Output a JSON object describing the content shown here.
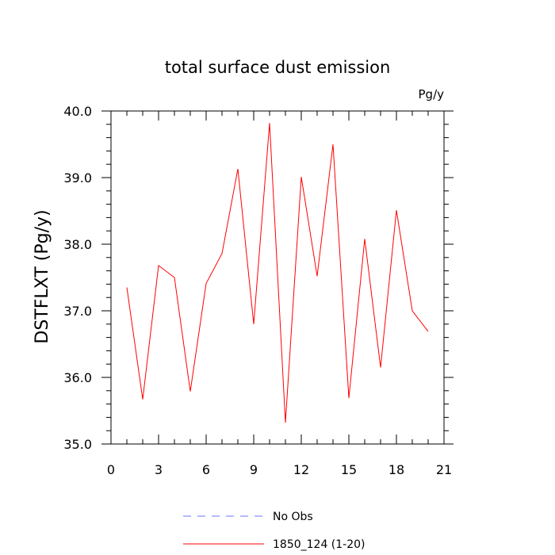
{
  "chart_data": {
    "type": "line",
    "title": "total surface dust emission",
    "units_label": "Pg/y",
    "ylabel": "DSTFLXT  (Pg/y)",
    "xlabel": "",
    "xlim": [
      0,
      21
    ],
    "ylim": [
      35.0,
      40.0
    ],
    "x_ticks": [
      0,
      3,
      6,
      9,
      12,
      15,
      18,
      21
    ],
    "x_tick_labels": [
      "0",
      "3",
      "6",
      "9",
      "12",
      "15",
      "18",
      "21"
    ],
    "y_ticks": [
      35.0,
      36.0,
      37.0,
      38.0,
      39.0,
      40.0
    ],
    "y_tick_labels": [
      "35.0",
      "36.0",
      "37.0",
      "38.0",
      "39.0",
      "40.0"
    ],
    "grid": false,
    "legend_position": "bottom-center",
    "series": [
      {
        "name": "1850_124 (1-20)",
        "color": "#ff0000",
        "style": "solid",
        "x": [
          1,
          2,
          3,
          4,
          5,
          6,
          7,
          8,
          9,
          10,
          11,
          12,
          13,
          14,
          15,
          16,
          17,
          18,
          19,
          20
        ],
        "y": [
          37.35,
          35.67,
          37.68,
          37.5,
          35.79,
          37.41,
          37.86,
          39.13,
          36.8,
          39.82,
          35.32,
          39.01,
          37.52,
          39.5,
          35.69,
          38.08,
          36.15,
          38.51,
          37.0,
          36.69
        ]
      }
    ],
    "legend": [
      {
        "label": "No Obs",
        "color": "#7070ff",
        "style": "dashed"
      },
      {
        "label": "1850_124 (1-20)",
        "color": "#ff0000",
        "style": "solid"
      }
    ]
  }
}
